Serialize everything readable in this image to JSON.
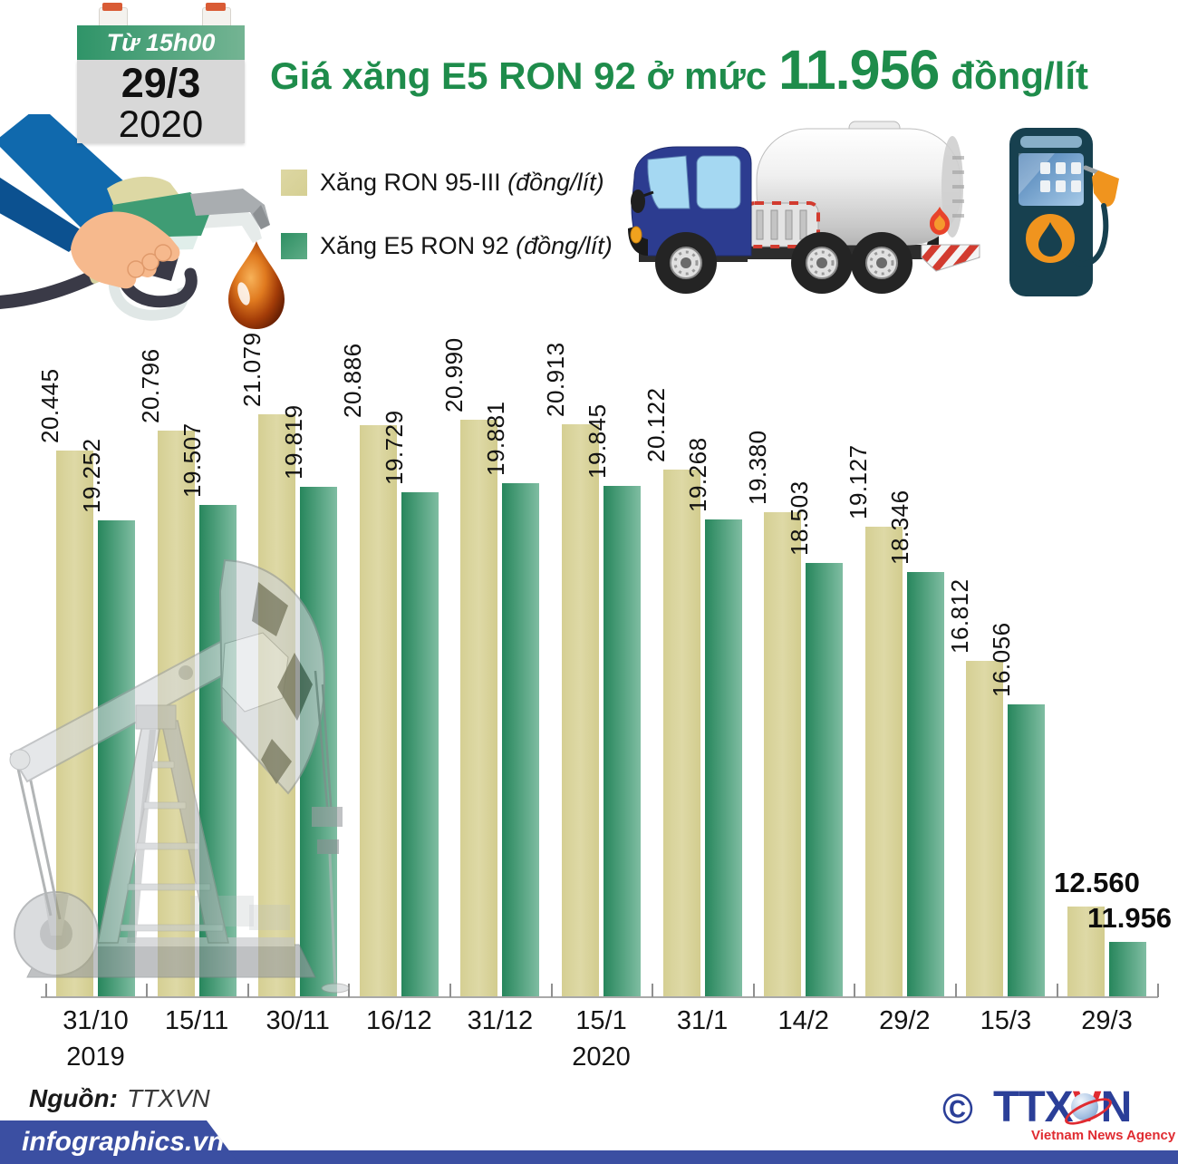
{
  "badge": {
    "time": "Từ 15h00",
    "date": "29/3",
    "year": "2020"
  },
  "title": {
    "prefix": "Giá xăng E5 RON 92 ở mức",
    "value": "11.956",
    "suffix": "đồng/lít"
  },
  "legend": [
    {
      "label": "Xăng RON 95-III",
      "unit": "(đồng/lít)",
      "color": "#d9d39b"
    },
    {
      "label": "Xăng E5 RON 92",
      "unit": "(đồng/lít)",
      "color": "#2e8f63"
    }
  ],
  "chart_data": {
    "type": "bar",
    "categories": [
      "31/10",
      "15/11",
      "30/11",
      "16/12",
      "31/12",
      "15/1",
      "31/1",
      "14/2",
      "29/2",
      "15/3",
      "29/3"
    ],
    "year_markers": [
      {
        "index": 0,
        "label": "2019"
      },
      {
        "index": 5,
        "label": "2020"
      }
    ],
    "series": [
      {
        "name": "Xăng RON 95-III (đồng/lít)",
        "color": "#d9d39b",
        "values": [
          20445,
          20796,
          21079,
          20886,
          20990,
          20913,
          20122,
          19380,
          19127,
          16812,
          12560
        ],
        "labels": [
          "20.445",
          "20.796",
          "21.079",
          "20.886",
          "20.990",
          "20.913",
          "20.122",
          "19.380",
          "19.127",
          "16.812",
          "12.560"
        ]
      },
      {
        "name": "Xăng E5 RON 92 (đồng/lít)",
        "color": "#2e8f63",
        "values": [
          19252,
          19507,
          19819,
          19729,
          19881,
          19845,
          19268,
          18503,
          18346,
          16056,
          11956
        ],
        "labels": [
          "19.252",
          "19.507",
          "19.819",
          "19.729",
          "19.881",
          "19.845",
          "19.268",
          "18.503",
          "18.346",
          "16.056",
          "11.956"
        ]
      }
    ],
    "ylim": [
      11000,
      21500
    ],
    "grid": false,
    "legend_position": "top-left",
    "emphasized_group_index": 10
  },
  "footer": {
    "source_label": "Nguồn:",
    "source_value": "TTXVN",
    "site": "infographics.vn",
    "logo": {
      "copyright": "©",
      "part1": "TTX",
      "part2": "V",
      "part3": "N",
      "subtitle": "Vietnam News Agency"
    }
  },
  "colors": {
    "title_green": "#1e8c4b",
    "banner_blue": "#3b4fa2",
    "logo_blue": "#2b3f98",
    "logo_red": "#e02b31"
  }
}
